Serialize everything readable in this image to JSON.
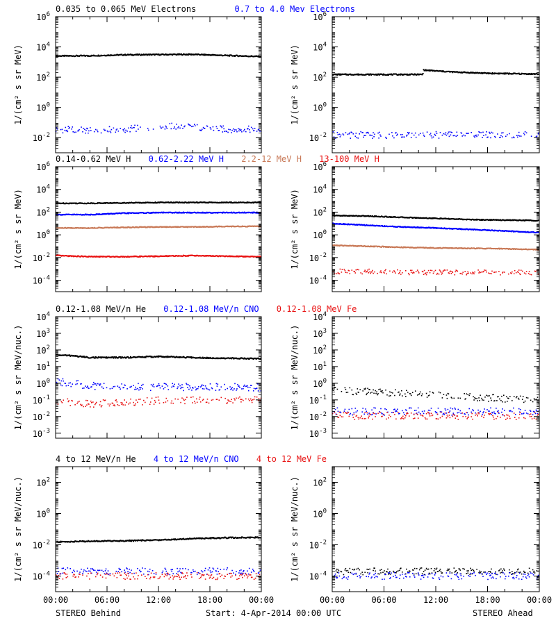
{
  "colors": {
    "black": "#000000",
    "blue": "#0000ff",
    "tan": "#c87856",
    "red": "#e81010"
  },
  "rows": [
    {
      "legend": [
        {
          "text": "0.035 to 0.065 MeV Electrons",
          "color": "#000000"
        },
        {
          "text": "0.7 to 4.0 Mev Electrons",
          "color": "#0000ff"
        }
      ]
    },
    {
      "legend": [
        {
          "text": "0.14-0.62 MeV H",
          "color": "#000000"
        },
        {
          "text": "0.62-2.22 MeV H",
          "color": "#0000ff"
        },
        {
          "text": "2.2-12 MeV H",
          "color": "#c87856"
        },
        {
          "text": "13-100 MeV H",
          "color": "#e81010"
        }
      ]
    },
    {
      "legend": [
        {
          "text": "0.12-1.08 MeV/n He",
          "color": "#000000"
        },
        {
          "text": "0.12-1.08 MeV/n CNO",
          "color": "#0000ff"
        },
        {
          "text": "0.12-1.08 MeV Fe",
          "color": "#e81010"
        }
      ]
    },
    {
      "legend": [
        {
          "text": "4 to 12 MeV/n He",
          "color": "#000000"
        },
        {
          "text": "4 to 12 MeV/n CNO",
          "color": "#0000ff"
        },
        {
          "text": "4 to 12 MeV Fe",
          "color": "#e81010"
        }
      ]
    }
  ],
  "footer": {
    "left": "STEREO Behind",
    "center": "Start:  4-Apr-2014 00:00 UTC",
    "right": "STEREO Ahead"
  },
  "chart_data": [
    {
      "type": "scatter",
      "panel": "Behind electrons",
      "ylabel": "1/(cm² s sr MeV)",
      "yscale": "log",
      "ylim": [
        0.001,
        1000000
      ],
      "yticks": [
        {
          "v": 0.01,
          "t": "10",
          "e": "-2"
        },
        {
          "v": 1,
          "t": "10",
          "e": "0"
        },
        {
          "v": 100,
          "t": "10",
          "e": "2"
        },
        {
          "v": 10000,
          "t": "10",
          "e": "4"
        },
        {
          "v": 1000000,
          "t": "10",
          "e": "6"
        }
      ],
      "xlim": [
        0,
        24
      ],
      "xticklabels": [],
      "series": [
        {
          "name": "0.035 to 0.065 MeV Electrons",
          "color": "#000000",
          "style": "line",
          "x": [
            0,
            4,
            8,
            12,
            16,
            20,
            24
          ],
          "y": [
            2500,
            2600,
            3000,
            3100,
            3200,
            2700,
            2300
          ]
        },
        {
          "name": "0.7 to 4.0 Mev Electrons",
          "color": "#0000ff",
          "style": "dots",
          "x": [
            0,
            4,
            8,
            12,
            16,
            20,
            24
          ],
          "y": [
            0.035,
            0.03,
            0.035,
            0.06,
            0.05,
            0.035,
            0.035
          ]
        }
      ]
    },
    {
      "type": "scatter",
      "panel": "Ahead electrons",
      "ylabel": "1/(cm² s sr MeV)",
      "yscale": "log",
      "ylim": [
        0.001,
        1000000
      ],
      "yticks": [
        {
          "v": 0.01,
          "t": "10",
          "e": "-2"
        },
        {
          "v": 1,
          "t": "10",
          "e": "0"
        },
        {
          "v": 100,
          "t": "10",
          "e": "2"
        },
        {
          "v": 10000,
          "t": "10",
          "e": "4"
        },
        {
          "v": 1000000,
          "t": "10",
          "e": "6"
        }
      ],
      "xlim": [
        0,
        24
      ],
      "xticklabels": [],
      "series": [
        {
          "name": "0.035 to 0.065 MeV Electrons",
          "color": "#000000",
          "style": "line",
          "x": [
            0,
            10.5,
            10.6,
            11,
            14,
            18,
            24
          ],
          "y": [
            150,
            150,
            300,
            280,
            220,
            180,
            160
          ]
        },
        {
          "name": "0.7 to 4.0 Mev Electrons",
          "color": "#0000ff",
          "style": "dots",
          "x": [
            0,
            4,
            8,
            12,
            16,
            20,
            24
          ],
          "y": [
            0.015,
            0.015,
            0.014,
            0.015,
            0.015,
            0.015,
            0.015
          ]
        }
      ]
    },
    {
      "type": "scatter",
      "panel": "Behind protons",
      "ylabel": "1/(cm² s sr MeV)",
      "yscale": "log",
      "ylim": [
        1e-05,
        1000000
      ],
      "yticks": [
        {
          "v": 0.0001,
          "t": "10",
          "e": "-4"
        },
        {
          "v": 0.01,
          "t": "10",
          "e": "-2"
        },
        {
          "v": 1,
          "t": "10",
          "e": "0"
        },
        {
          "v": 100,
          "t": "10",
          "e": "2"
        },
        {
          "v": 10000,
          "t": "10",
          "e": "4"
        },
        {
          "v": 1000000,
          "t": "10",
          "e": "6"
        }
      ],
      "xlim": [
        0,
        24
      ],
      "xticklabels": [],
      "series": [
        {
          "name": "0.14-0.62 MeV H",
          "color": "#000000",
          "style": "line",
          "x": [
            0,
            4,
            8,
            12,
            16,
            20,
            24
          ],
          "y": [
            600,
            600,
            650,
            700,
            700,
            700,
            700
          ]
        },
        {
          "name": "0.62-2.22 MeV H",
          "color": "#0000ff",
          "style": "line",
          "x": [
            0,
            4,
            8,
            12,
            16,
            20,
            24
          ],
          "y": [
            60,
            60,
            80,
            90,
            90,
            90,
            90
          ]
        },
        {
          "name": "2.2-12 MeV H",
          "color": "#c87856",
          "style": "line",
          "x": [
            0,
            4,
            8,
            12,
            16,
            20,
            24
          ],
          "y": [
            4,
            4,
            4.5,
            5,
            5,
            5.5,
            5.5
          ]
        },
        {
          "name": "13-100 MeV H",
          "color": "#e81010",
          "style": "line",
          "x": [
            0,
            4,
            8,
            12,
            16,
            20,
            24
          ],
          "y": [
            0.015,
            0.012,
            0.012,
            0.013,
            0.015,
            0.013,
            0.012
          ]
        }
      ]
    },
    {
      "type": "scatter",
      "panel": "Ahead protons",
      "ylabel": "1/(cm² s sr MeV)",
      "yscale": "log",
      "ylim": [
        1e-05,
        1000000
      ],
      "yticks": [
        {
          "v": 0.0001,
          "t": "10",
          "e": "-4"
        },
        {
          "v": 0.01,
          "t": "10",
          "e": "-2"
        },
        {
          "v": 1,
          "t": "10",
          "e": "0"
        },
        {
          "v": 100,
          "t": "10",
          "e": "2"
        },
        {
          "v": 10000,
          "t": "10",
          "e": "4"
        },
        {
          "v": 1000000,
          "t": "10",
          "e": "6"
        }
      ],
      "xlim": [
        0,
        24
      ],
      "xticklabels": [],
      "series": [
        {
          "name": "0.14-0.62 MeV H",
          "color": "#000000",
          "style": "line",
          "x": [
            0,
            4,
            8,
            12,
            16,
            20,
            24
          ],
          "y": [
            50,
            45,
            35,
            28,
            22,
            20,
            18
          ]
        },
        {
          "name": "0.62-2.22 MeV H",
          "color": "#0000ff",
          "style": "line",
          "x": [
            0,
            4,
            8,
            12,
            16,
            20,
            24
          ],
          "y": [
            10,
            7,
            5,
            4,
            3,
            2.2,
            1.6
          ]
        },
        {
          "name": "2.2-12 MeV H",
          "color": "#c87856",
          "style": "line",
          "x": [
            0,
            4,
            8,
            12,
            16,
            20,
            24
          ],
          "y": [
            0.12,
            0.1,
            0.08,
            0.07,
            0.065,
            0.06,
            0.05
          ]
        },
        {
          "name": "13-100 MeV H",
          "color": "#e81010",
          "style": "dots",
          "x": [
            0,
            4,
            8,
            12,
            16,
            20,
            24
          ],
          "y": [
            0.0006,
            0.0006,
            0.0005,
            0.0005,
            0.0005,
            0.0005,
            0.0005
          ]
        }
      ]
    },
    {
      "type": "scatter",
      "panel": "Behind heavy ions",
      "ylabel": "1/(cm² s sr MeV/nuc.)",
      "yscale": "log",
      "ylim": [
        0.0005,
        10000
      ],
      "yticks": [
        {
          "v": 0.001,
          "t": "10",
          "e": "-3"
        },
        {
          "v": 0.01,
          "t": "10",
          "e": "-2"
        },
        {
          "v": 0.1,
          "t": "10",
          "e": "-1"
        },
        {
          "v": 1,
          "t": "10",
          "e": "0"
        },
        {
          "v": 10,
          "t": "10",
          "e": "1"
        },
        {
          "v": 100,
          "t": "10",
          "e": "2"
        },
        {
          "v": 1000,
          "t": "10",
          "e": "3"
        },
        {
          "v": 10000,
          "t": "10",
          "e": "4"
        }
      ],
      "xlim": [
        0,
        24
      ],
      "xticklabels": [],
      "series": [
        {
          "name": "0.12-1.08 MeV/n He",
          "color": "#000000",
          "style": "line",
          "x": [
            0,
            2,
            4,
            8,
            12,
            16,
            20,
            24
          ],
          "y": [
            50,
            45,
            35,
            35,
            40,
            35,
            32,
            30
          ]
        },
        {
          "name": "0.12-1.08 MeV/n CNO",
          "color": "#0000ff",
          "style": "dots",
          "x": [
            0,
            2,
            4,
            8,
            12,
            16,
            20,
            24
          ],
          "y": [
            1.2,
            1.0,
            0.7,
            0.6,
            0.6,
            0.6,
            0.6,
            0.55
          ]
        },
        {
          "name": "0.12-1.08 MeV Fe",
          "color": "#e81010",
          "style": "dots",
          "x": [
            0,
            4,
            8,
            12,
            16,
            20,
            24
          ],
          "y": [
            0.08,
            0.06,
            0.07,
            0.09,
            0.1,
            0.1,
            0.1
          ]
        }
      ]
    },
    {
      "type": "scatter",
      "panel": "Ahead heavy ions",
      "ylabel": "1/(cm² s sr MeV/nuc.)",
      "yscale": "log",
      "ylim": [
        0.0005,
        10000
      ],
      "yticks": [
        {
          "v": 0.001,
          "t": "10",
          "e": "-3"
        },
        {
          "v": 0.01,
          "t": "10",
          "e": "-2"
        },
        {
          "v": 0.1,
          "t": "10",
          "e": "-1"
        },
        {
          "v": 1,
          "t": "10",
          "e": "0"
        },
        {
          "v": 10,
          "t": "10",
          "e": "1"
        },
        {
          "v": 100,
          "t": "10",
          "e": "2"
        },
        {
          "v": 1000,
          "t": "10",
          "e": "3"
        },
        {
          "v": 10000,
          "t": "10",
          "e": "4"
        }
      ],
      "xlim": [
        0,
        24
      ],
      "xticklabels": [],
      "series": [
        {
          "name": "0.12-1.08 MeV/n He",
          "color": "#000000",
          "style": "dots",
          "x": [
            0,
            4,
            8,
            12,
            16,
            20,
            24
          ],
          "y": [
            0.4,
            0.3,
            0.25,
            0.2,
            0.15,
            0.12,
            0.1
          ]
        },
        {
          "name": "0.12-1.08 MeV/n CNO",
          "color": "#0000ff",
          "style": "dots",
          "x": [
            0,
            4,
            8,
            12,
            16,
            20,
            24
          ],
          "y": [
            0.02,
            0.02,
            0.02,
            0.02,
            0.02,
            0.02,
            0.02
          ]
        },
        {
          "name": "0.12-1.08 MeV Fe",
          "color": "#e81010",
          "style": "dots",
          "x": [
            0,
            4,
            8,
            12,
            16,
            20,
            24
          ],
          "y": [
            0.011,
            0.011,
            0.011,
            0.011,
            0.011,
            0.011,
            0.011
          ]
        }
      ]
    },
    {
      "type": "scatter",
      "panel": "Behind high-energy ions",
      "ylabel": "1/(cm² s sr MeV/nuc.)",
      "yscale": "log",
      "ylim": [
        1e-05,
        1000
      ],
      "yticks": [
        {
          "v": 0.0001,
          "t": "10",
          "e": "-4"
        },
        {
          "v": 0.01,
          "t": "10",
          "e": "-2"
        },
        {
          "v": 1,
          "t": "10",
          "e": "0"
        },
        {
          "v": 100,
          "t": "10",
          "e": "2"
        }
      ],
      "xlim": [
        0,
        24
      ],
      "xticklabels": [
        "00:00",
        "06:00",
        "12:00",
        "18:00",
        "00:00"
      ],
      "series": [
        {
          "name": "4 to 12 MeV/n He",
          "color": "#000000",
          "style": "line",
          "x": [
            0,
            4,
            8,
            12,
            16,
            20,
            24
          ],
          "y": [
            0.015,
            0.017,
            0.018,
            0.02,
            0.025,
            0.028,
            0.03
          ]
        },
        {
          "name": "4 to 12 MeV/n CNO",
          "color": "#0000ff",
          "style": "dots",
          "x": [
            0,
            4,
            8,
            12,
            16,
            20,
            24
          ],
          "y": [
            0.0002,
            0.0002,
            0.0002,
            0.0002,
            0.0002,
            0.0002,
            0.0002
          ]
        },
        {
          "name": "4 to 12 MeV Fe",
          "color": "#e81010",
          "style": "dots",
          "x": [
            0,
            4,
            8,
            12,
            16,
            20,
            24
          ],
          "y": [
            0.0001,
            0.0001,
            0.0001,
            0.0001,
            0.0001,
            0.0001,
            0.0001
          ]
        }
      ]
    },
    {
      "type": "scatter",
      "panel": "Ahead high-energy ions",
      "ylabel": "1/(cm² s sr MeV/nuc.)",
      "yscale": "log",
      "ylim": [
        1e-05,
        1000
      ],
      "yticks": [
        {
          "v": 0.0001,
          "t": "10",
          "e": "-4"
        },
        {
          "v": 0.01,
          "t": "10",
          "e": "-2"
        },
        {
          "v": 1,
          "t": "10",
          "e": "0"
        },
        {
          "v": 100,
          "t": "10",
          "e": "2"
        }
      ],
      "xlim": [
        0,
        24
      ],
      "xticklabels": [
        "00:00",
        "06:00",
        "12:00",
        "18:00",
        "00:00"
      ],
      "series": [
        {
          "name": "4 to 12 MeV/n He",
          "color": "#000000",
          "style": "dots",
          "x": [
            0,
            4,
            8,
            12,
            16,
            20,
            24
          ],
          "y": [
            0.0002,
            0.0002,
            0.0002,
            0.0002,
            0.0002,
            0.0002,
            0.0002
          ]
        },
        {
          "name": "4 to 12 MeV/n CNO",
          "color": "#0000ff",
          "style": "dots",
          "x": [
            0,
            4,
            8,
            12,
            16,
            20,
            24
          ],
          "y": [
            0.0001,
            0.0001,
            0.0001,
            0.0001,
            0.0001,
            0.0001,
            0.0001
          ]
        }
      ]
    }
  ]
}
